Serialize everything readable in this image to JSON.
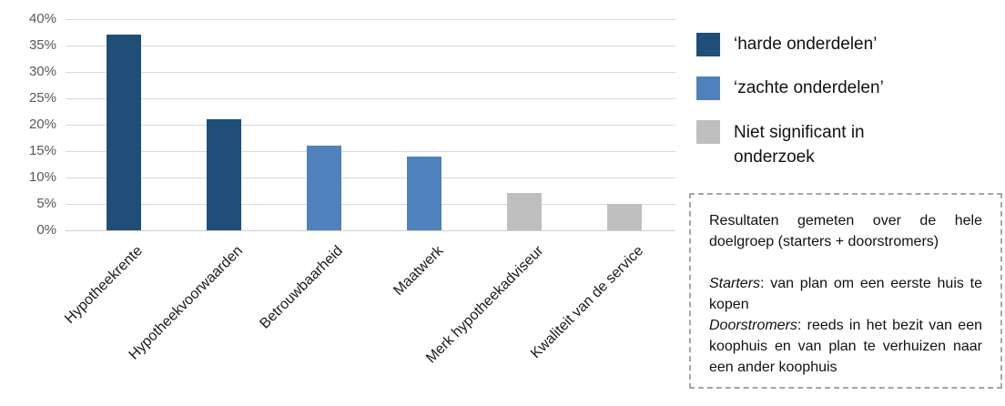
{
  "chart_data": {
    "type": "bar",
    "title": "",
    "xlabel": "",
    "ylabel": "",
    "categories": [
      "Hypotheekrente",
      "Hypotheekvoorwaarden",
      "Betrouwbaarheid",
      "Maatwerk",
      "Merk hypotheekadviseur",
      "Kwaliteit van de service"
    ],
    "values": [
      37,
      21,
      16,
      14,
      7,
      5
    ],
    "groups": [
      "harde",
      "harde",
      "zachte",
      "zachte",
      "niet_significant",
      "niet_significant"
    ],
    "ylim": [
      0,
      40
    ],
    "ytick_step": 5,
    "ytick_labels": [
      "0%",
      "5%",
      "10%",
      "15%",
      "20%",
      "25%",
      "30%",
      "35%",
      "40%"
    ],
    "grid": true,
    "legend_position": "right"
  },
  "colors": {
    "harde": "#1F4E79",
    "zachte": "#4F81BD",
    "niet_significant": "#BFBFBF",
    "gridline": "#D9D9D9",
    "axis_label": "#595959",
    "note_border": "#A6A6A6"
  },
  "legend": {
    "items": [
      {
        "label": "‘harde onderdelen’",
        "group": "harde"
      },
      {
        "label": "‘zachte onderdelen’",
        "group": "zachte"
      },
      {
        "label": "Niet significant in onderzoek",
        "group": "niet_significant"
      }
    ]
  },
  "note_box": {
    "intro": "Resultaten gemeten over de hele doelgroep (starters + doorstromers)",
    "definitions": [
      {
        "term": "Starters",
        "text": ": van plan om een eerste huis te kopen"
      },
      {
        "term": "Doorstromers",
        "text": ": reeds in het bezit van een koophuis en van plan te verhuizen naar een ander koophuis"
      }
    ]
  }
}
